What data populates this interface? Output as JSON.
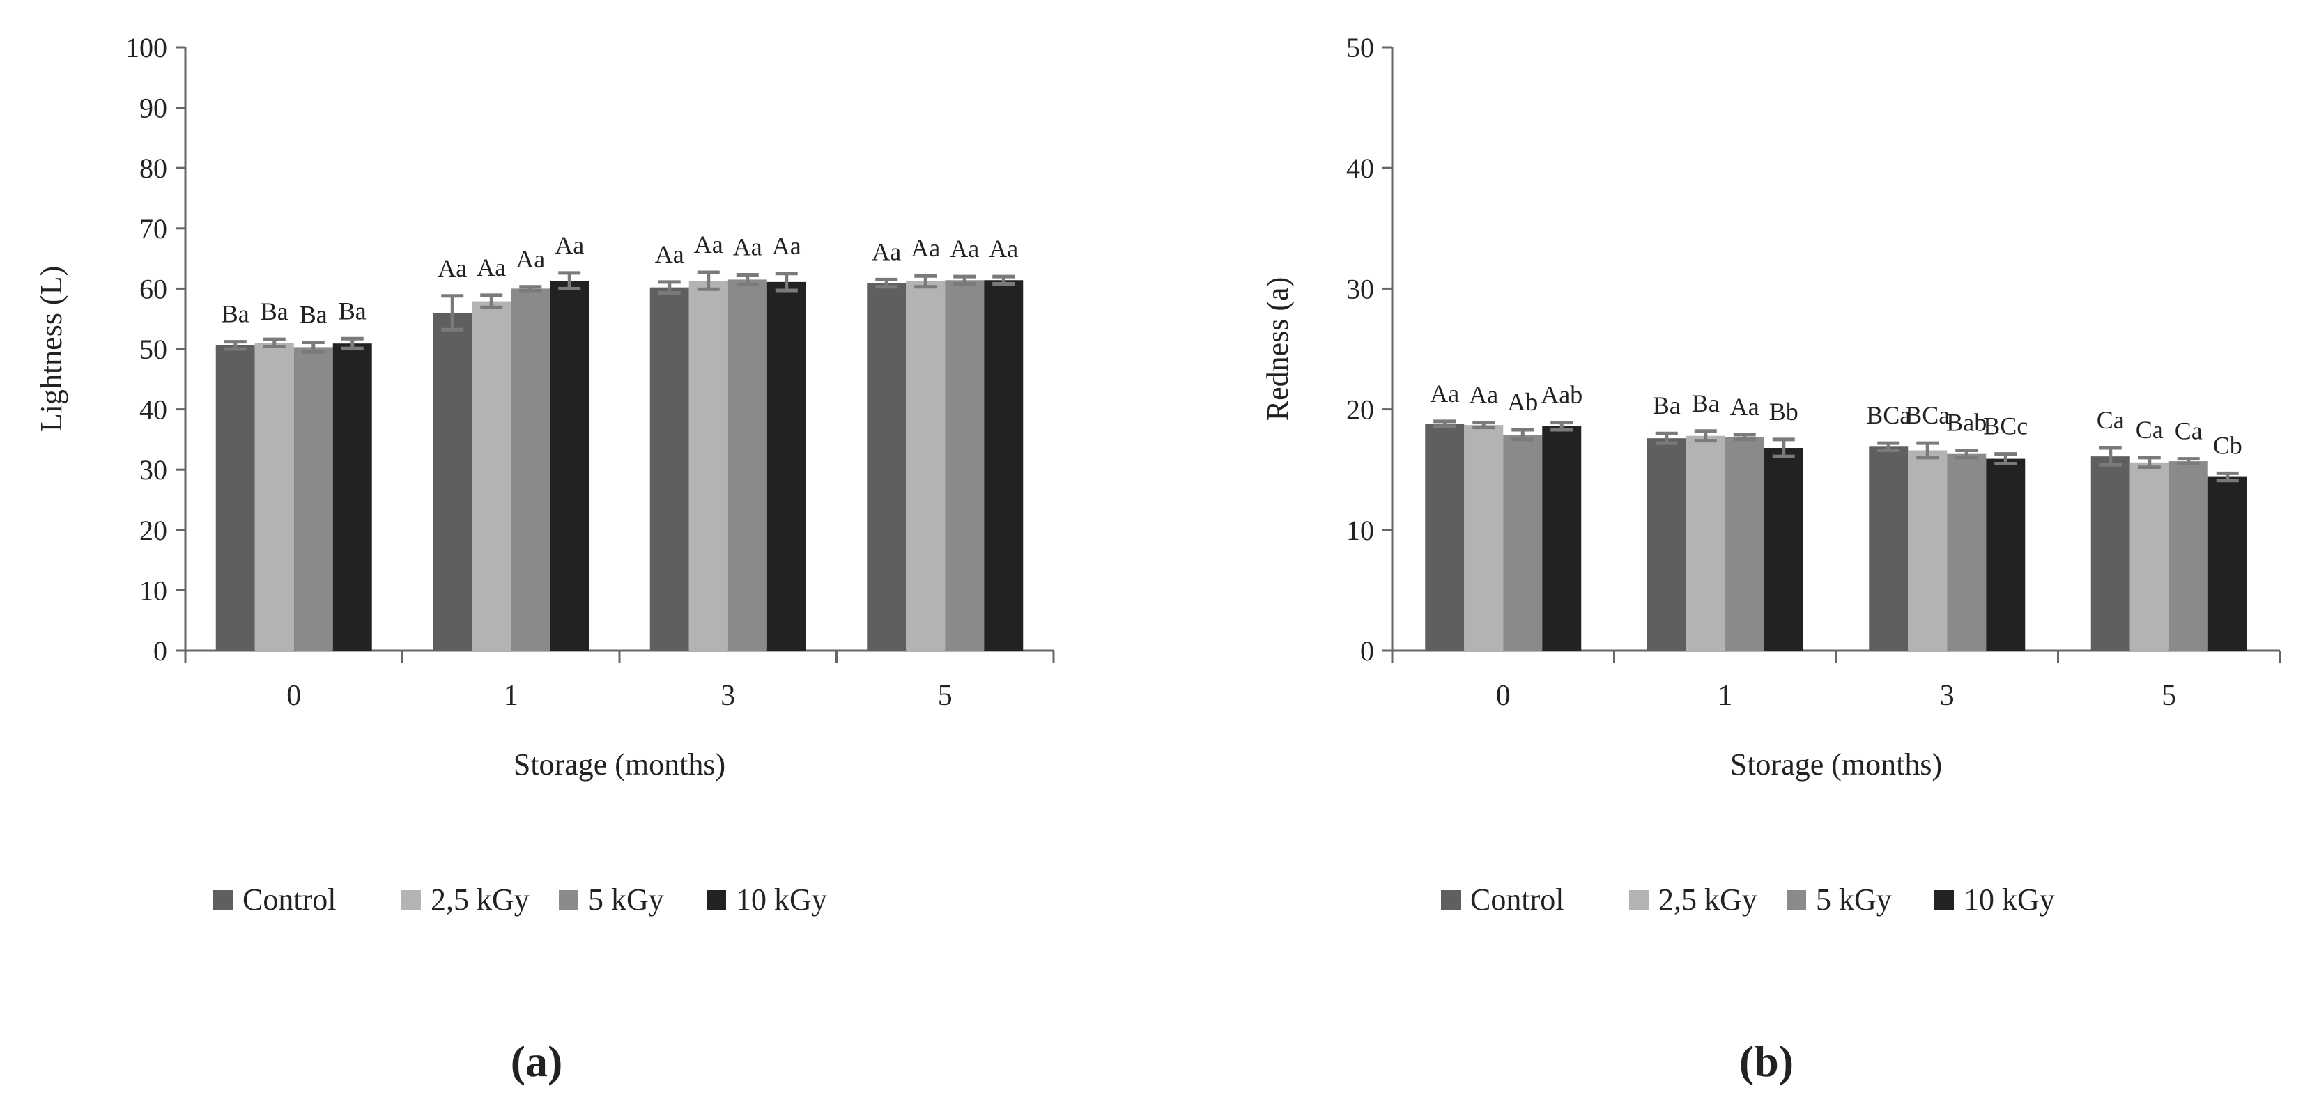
{
  "chart_data": [
    {
      "type": "bar",
      "panel_label": "(a)",
      "xlabel": "Storage (months)",
      "ylabel": "Lightness (L)",
      "ylim": [
        0,
        100
      ],
      "yticks": [
        "0",
        "10",
        "20",
        "30",
        "40",
        "50",
        "60",
        "70",
        "80",
        "90",
        "100"
      ],
      "categories": [
        "0",
        "1",
        "3",
        "5"
      ],
      "legend_position": "bottom",
      "series": [
        {
          "name": "Control",
          "color": "#5f5f5f",
          "values": [
            50.6,
            56.0,
            60.2,
            60.9
          ],
          "errors": [
            0.6,
            2.8,
            0.9,
            0.6
          ],
          "labels": [
            "Ba",
            "Aa",
            "Aa",
            "Aa"
          ]
        },
        {
          "name": "2,5 kGy",
          "color": "#b3b3b3",
          "values": [
            51.0,
            57.9,
            61.3,
            61.2
          ],
          "errors": [
            0.6,
            1.0,
            1.4,
            0.9
          ],
          "labels": [
            "Ba",
            "Aa",
            "Aa",
            "Aa"
          ]
        },
        {
          "name": "5 kGy",
          "color": "#8a8a8a",
          "values": [
            50.3,
            60.0,
            61.5,
            61.4
          ],
          "errors": [
            0.8,
            0.3,
            0.8,
            0.6
          ],
          "labels": [
            "Ba",
            "Aa",
            "Aa",
            "Aa"
          ]
        },
        {
          "name": "10 kGy",
          "color": "#222222",
          "values": [
            50.9,
            61.3,
            61.1,
            61.4
          ],
          "errors": [
            0.8,
            1.3,
            1.4,
            0.6
          ],
          "labels": [
            "Ba",
            "Aa",
            "Aa",
            "Aa"
          ]
        }
      ]
    },
    {
      "type": "bar",
      "panel_label": "(b)",
      "xlabel": "Storage (months)",
      "ylabel": "Redness (a)",
      "ylim": [
        0,
        50
      ],
      "yticks": [
        "0",
        "10",
        "20",
        "30",
        "40",
        "50"
      ],
      "categories": [
        "0",
        "1",
        "3",
        "5"
      ],
      "legend_position": "bottom",
      "series": [
        {
          "name": "Control",
          "color": "#5f5f5f",
          "values": [
            18.8,
            17.6,
            16.9,
            16.1
          ],
          "errors": [
            0.2,
            0.4,
            0.3,
            0.7
          ],
          "labels": [
            "Aa",
            "Ba",
            "BCa",
            "Ca"
          ]
        },
        {
          "name": "2,5 kGy",
          "color": "#b3b3b3",
          "values": [
            18.7,
            17.8,
            16.6,
            15.6
          ],
          "errors": [
            0.2,
            0.4,
            0.6,
            0.4
          ],
          "labels": [
            "Aa",
            "Ba",
            "BCa",
            "Ca"
          ]
        },
        {
          "name": "5 kGy",
          "color": "#8a8a8a",
          "values": [
            17.9,
            17.7,
            16.3,
            15.7
          ],
          "errors": [
            0.4,
            0.2,
            0.3,
            0.2
          ],
          "labels": [
            "Ab",
            "Aa",
            "Bab",
            "Ca"
          ]
        },
        {
          "name": "10 kGy",
          "color": "#222222",
          "values": [
            18.6,
            16.8,
            15.9,
            14.4
          ],
          "errors": [
            0.3,
            0.7,
            0.4,
            0.3
          ],
          "labels": [
            "Aab",
            "Bb",
            "BCc",
            "Cb"
          ]
        }
      ]
    }
  ]
}
